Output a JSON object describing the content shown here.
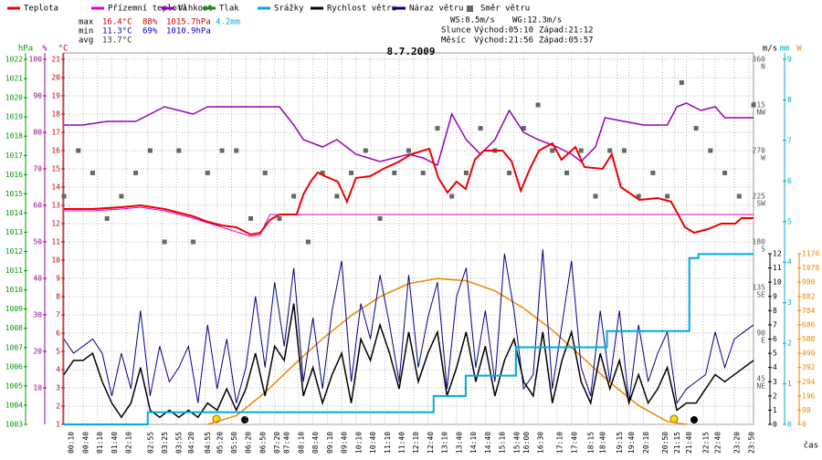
{
  "chart_data": {
    "type": "line",
    "title": "8.7.2009",
    "x_label": "čas",
    "xlim": [
      0,
      1440
    ],
    "xticks": [
      {
        "value": 10,
        "label": "00:10"
      },
      {
        "value": 40,
        "label": "00:40"
      },
      {
        "value": 70,
        "label": "01:10"
      },
      {
        "value": 100,
        "label": "01:40"
      },
      {
        "value": 130,
        "label": "02:10"
      },
      {
        "value": 175,
        "label": "02:55"
      },
      {
        "value": 205,
        "label": "03:25"
      },
      {
        "value": 235,
        "label": "03:55"
      },
      {
        "value": 260,
        "label": "04:20"
      },
      {
        "value": 295,
        "label": "04:55"
      },
      {
        "value": 320,
        "label": "05:20"
      },
      {
        "value": 350,
        "label": "05:50"
      },
      {
        "value": 380,
        "label": "06:20"
      },
      {
        "value": 410,
        "label": "06:50"
      },
      {
        "value": 440,
        "label": "07:20"
      },
      {
        "value": 460,
        "label": "07:40"
      },
      {
        "value": 490,
        "label": "08:10"
      },
      {
        "value": 520,
        "label": "08:40"
      },
      {
        "value": 550,
        "label": "09:10"
      },
      {
        "value": 580,
        "label": "09:40"
      },
      {
        "value": 610,
        "label": "10:10"
      },
      {
        "value": 640,
        "label": "10:40"
      },
      {
        "value": 670,
        "label": "11:10"
      },
      {
        "value": 700,
        "label": "11:40"
      },
      {
        "value": 730,
        "label": "12:10"
      },
      {
        "value": 760,
        "label": "12:40"
      },
      {
        "value": 790,
        "label": "13:10"
      },
      {
        "value": 820,
        "label": "13:40"
      },
      {
        "value": 850,
        "label": "14:10"
      },
      {
        "value": 880,
        "label": "14:40"
      },
      {
        "value": 910,
        "label": "15:10"
      },
      {
        "value": 940,
        "label": "15:40"
      },
      {
        "value": 960,
        "label": "16:00"
      },
      {
        "value": 990,
        "label": "16:30"
      },
      {
        "value": 1030,
        "label": "17:10"
      },
      {
        "value": 1060,
        "label": "17:40"
      },
      {
        "value": 1095,
        "label": "18:15"
      },
      {
        "value": 1120,
        "label": "18:40"
      },
      {
        "value": 1155,
        "label": "19:15"
      },
      {
        "value": 1180,
        "label": "19:40"
      },
      {
        "value": 1210,
        "label": "20:10"
      },
      {
        "value": 1250,
        "label": "20:50"
      },
      {
        "value": 1275,
        "label": "21:15"
      },
      {
        "value": 1300,
        "label": "21:40"
      },
      {
        "value": 1335,
        "label": "22:15"
      },
      {
        "value": 1360,
        "label": "22:40"
      },
      {
        "value": 1400,
        "label": "23:20"
      },
      {
        "value": 1430,
        "label": "23:50"
      }
    ],
    "x": [
      0,
      20,
      40,
      60,
      80,
      100,
      120,
      140,
      160,
      180,
      200,
      220,
      240,
      260,
      280,
      300,
      320,
      340,
      360,
      380,
      400,
      420,
      440,
      460,
      480,
      500,
      520,
      540,
      560,
      580,
      600,
      620,
      640,
      660,
      680,
      700,
      720,
      740,
      760,
      780,
      800,
      820,
      840,
      860,
      880,
      900,
      920,
      940,
      960,
      980,
      1000,
      1020,
      1040,
      1060,
      1080,
      1100,
      1120,
      1140,
      1160,
      1180,
      1200,
      1220,
      1240,
      1260,
      1280,
      1300,
      1320,
      1340,
      1360,
      1380,
      1400,
      1420,
      1440
    ],
    "axes": {
      "pressure": {
        "unit": "hPa",
        "color": "#009900",
        "lim": [
          1003,
          1022
        ],
        "ticks": [
          1003,
          1004,
          1005,
          1006,
          1007,
          1008,
          1009,
          1010,
          1011,
          1012,
          1013,
          1014,
          1015,
          1016,
          1017,
          1018,
          1019,
          1020,
          1021,
          1022
        ]
      },
      "humidity": {
        "unit": "%",
        "color": "#990099",
        "lim": [
          0,
          100
        ],
        "ticks": [
          10,
          20,
          30,
          40,
          50,
          60,
          70,
          80,
          90,
          100
        ]
      },
      "temperature": {
        "unit": "°C",
        "color": "#cc0000",
        "lim": [
          1,
          21
        ],
        "ticks": [
          1,
          2,
          3,
          4,
          5,
          6,
          7,
          8,
          9,
          10,
          11,
          12,
          13,
          14,
          15,
          16,
          17,
          18,
          19,
          20,
          21
        ]
      },
      "direction": {
        "color": "#555555",
        "lim": [
          0,
          360
        ],
        "ticks": [
          45,
          90,
          135,
          180,
          225,
          270,
          315,
          360
        ],
        "tick_names": [
          "NE",
          "E",
          "SE",
          "S",
          "SW",
          "W",
          "NW",
          "N"
        ]
      },
      "wind": {
        "unit": "m/s",
        "color": "#000000",
        "lim": [
          0,
          12
        ],
        "ticks": [
          0,
          1,
          2,
          3,
          4,
          5,
          6,
          7,
          8,
          9,
          10,
          11,
          12
        ]
      },
      "rain": {
        "unit": "mm",
        "color": "#00aacc",
        "lim": [
          0,
          9
        ],
        "ticks": [
          0,
          1,
          2,
          3,
          4,
          5,
          6,
          7,
          8,
          9
        ]
      },
      "solar": {
        "unit": "W",
        "color": "#ee8800",
        "lim": [
          0,
          1176
        ],
        "ticks": [
          0,
          98,
          196,
          294,
          392,
          490,
          588,
          686,
          784,
          882,
          980,
          1078,
          1176
        ]
      }
    },
    "stats": {
      "rows": [
        [
          "max",
          "16.4°C",
          "88%",
          "1015.7hPa",
          "4.2mm"
        ],
        [
          "min",
          "11.3°C",
          "69%",
          "1010.9hPa"
        ],
        [
          "avg",
          "13.7°C"
        ]
      ],
      "wind": [
        "WS:8.5m/s",
        "WG:12.3m/s"
      ],
      "sun": [
        "Slunce",
        "Východ:05:10",
        "Západ:21:12"
      ],
      "moon": [
        "Měsíc",
        "Východ:21:56",
        "Západ:05:57"
      ]
    },
    "series": [
      {
        "name": "Teplota",
        "color": "#ee0000",
        "axis": "temperature",
        "style": "line",
        "width": 2,
        "x": [
          0,
          60,
          120,
          160,
          210,
          270,
          300,
          330,
          360,
          390,
          410,
          430,
          450,
          486,
          500,
          515,
          530,
          545,
          572,
          591,
          610,
          640,
          667,
          700,
          725,
          763,
          782,
          801,
          820,
          839,
          858,
          877,
          916,
          935,
          954,
          973,
          992,
          1020,
          1039,
          1068,
          1087,
          1125,
          1144,
          1163,
          1202,
          1240,
          1268,
          1297,
          1316,
          1345,
          1373,
          1402,
          1415,
          1440
        ],
        "values": [
          12.8,
          12.8,
          12.9,
          13.0,
          12.8,
          12.4,
          12.1,
          11.9,
          11.8,
          11.4,
          11.5,
          12.2,
          12.5,
          12.5,
          13.6,
          14.3,
          14.8,
          14.6,
          14.3,
          13.2,
          14.5,
          14.6,
          15.0,
          15.4,
          15.8,
          16.1,
          14.5,
          13.7,
          14.3,
          13.9,
          15.5,
          16.0,
          16.0,
          15.4,
          13.8,
          15.0,
          16.0,
          16.4,
          15.5,
          16.2,
          15.1,
          15.0,
          15.8,
          14.0,
          13.3,
          13.4,
          13.2,
          11.8,
          11.5,
          11.7,
          12.0,
          12.0,
          12.3,
          12.3
        ]
      },
      {
        "name": "Přízemní teplota",
        "color": "#dd00dd",
        "axis": "temperature",
        "style": "line",
        "width": 1,
        "x": [
          0,
          60,
          120,
          160,
          210,
          270,
          330,
          390,
          410,
          430,
          1440
        ],
        "values": [
          12.7,
          12.7,
          12.8,
          12.9,
          12.7,
          12.3,
          11.8,
          11.3,
          11.4,
          12.5,
          12.5
        ]
      },
      {
        "name": "Vlhkost",
        "color": "#9900bb",
        "axis": "humidity",
        "style": "line",
        "width": 1.5,
        "x": [
          0,
          40,
          90,
          150,
          180,
          210,
          270,
          300,
          360,
          450,
          480,
          500,
          540,
          570,
          610,
          660,
          720,
          750,
          780,
          810,
          840,
          870,
          900,
          930,
          960,
          990,
          1030,
          1060,
          1080,
          1110,
          1130,
          1170,
          1210,
          1260,
          1280,
          1300,
          1330,
          1360,
          1380,
          1410,
          1440
        ],
        "values": [
          82,
          82,
          83,
          83,
          85,
          87,
          85,
          87,
          87,
          87,
          82,
          78,
          76,
          78,
          74,
          72,
          74,
          73,
          71,
          85,
          78,
          74,
          78,
          86,
          80,
          78,
          76,
          74,
          72,
          76,
          84,
          83,
          82,
          82,
          87,
          88,
          86,
          87,
          84,
          84,
          84
        ]
      },
      {
        "name": "Tlak",
        "color": "#009900",
        "axis": "pressure",
        "style": "line",
        "width": 1.5,
        "x": [],
        "values": []
      },
      {
        "name": "Srážky",
        "color": "#00aadd",
        "axis": "rain",
        "style": "step",
        "width": 2,
        "x": [
          0,
          175,
          772,
          839,
          944,
          1134,
          1306,
          1325,
          1440
        ],
        "values": [
          0,
          0.3,
          0.7,
          1.2,
          1.9,
          2.3,
          4.1,
          4.2,
          4.2
        ]
      },
      {
        "name": "Rychlost větru",
        "color": "#000000",
        "axis": "wind",
        "style": "line",
        "width": 1.5,
        "values": [
          3.5,
          4.5,
          4.5,
          5,
          3,
          1.5,
          0.5,
          1.5,
          4,
          1,
          0.5,
          1,
          0.5,
          1,
          0.5,
          1.5,
          1,
          2.5,
          1,
          2.5,
          5,
          2,
          5.5,
          4.5,
          8.5,
          2,
          4,
          1.5,
          3.5,
          5,
          1.5,
          6,
          4.5,
          7,
          5,
          2.5,
          6.5,
          3,
          5,
          6.5,
          2,
          4,
          6.5,
          3,
          5.5,
          2,
          4.5,
          6,
          3,
          2,
          6.5,
          1.5,
          4.5,
          6.5,
          3,
          1.5,
          5,
          2.5,
          4.5,
          1.5,
          3.5,
          1.5,
          2.5,
          4,
          1,
          1.5,
          1.5,
          2.5,
          3.5,
          3,
          3.5,
          4,
          4.5
        ]
      },
      {
        "name": "Náraz větru",
        "color": "#000088",
        "axis": "wind",
        "style": "line",
        "width": 1,
        "values": [
          6,
          5,
          5.5,
          6,
          5,
          2,
          5,
          2.5,
          8,
          2,
          5.5,
          3,
          4,
          5.5,
          1.5,
          7,
          2.5,
          6,
          1.5,
          4,
          9,
          4,
          10,
          5.5,
          11,
          3,
          7.5,
          2.5,
          8,
          11.5,
          3,
          8.5,
          6,
          10.5,
          7,
          3,
          10.5,
          4,
          7.5,
          10,
          2.5,
          9,
          11,
          4,
          8,
          3,
          12,
          8,
          2.5,
          3.5,
          12.3,
          2.5,
          7,
          11.5,
          4,
          2,
          8,
          3,
          8,
          1.5,
          7,
          3,
          5,
          6.5,
          1.5,
          2.5,
          3,
          3.5,
          6.5,
          4,
          6,
          6.5,
          7
        ]
      },
      {
        "name": "Směr větru",
        "color": "#666666",
        "axis": "direction",
        "style": "square",
        "x": [
          0,
          30,
          60,
          90,
          120,
          150,
          180,
          210,
          240,
          270,
          300,
          330,
          360,
          390,
          420,
          450,
          480,
          510,
          540,
          570,
          600,
          630,
          660,
          690,
          720,
          750,
          780,
          810,
          840,
          870,
          900,
          930,
          960,
          990,
          1020,
          1050,
          1080,
          1110,
          1140,
          1170,
          1200,
          1230,
          1260,
          1290,
          1320,
          1350,
          1380,
          1410,
          1440
        ],
        "values": [
          225,
          270,
          248,
          203,
          225,
          248,
          270,
          180,
          270,
          180,
          248,
          270,
          270,
          203,
          248,
          203,
          225,
          180,
          248,
          225,
          248,
          270,
          203,
          248,
          270,
          248,
          292,
          225,
          248,
          292,
          270,
          248,
          292,
          315,
          270,
          248,
          270,
          225,
          270,
          270,
          225,
          248,
          225,
          337,
          292,
          270,
          248,
          225,
          315
        ]
      },
      {
        "color": "#ee8800",
        "axis": "solar",
        "style": "line",
        "width": 1.5,
        "x": [
          300,
          360,
          420,
          480,
          540,
          600,
          660,
          720,
          780,
          840,
          900,
          960,
          1020,
          1080,
          1140,
          1200,
          1260,
          1300
        ],
        "values": [
          0,
          60,
          220,
          410,
          590,
          750,
          880,
          970,
          1005,
          990,
          920,
          800,
          650,
          470,
          290,
          130,
          20,
          0
        ]
      }
    ]
  }
}
